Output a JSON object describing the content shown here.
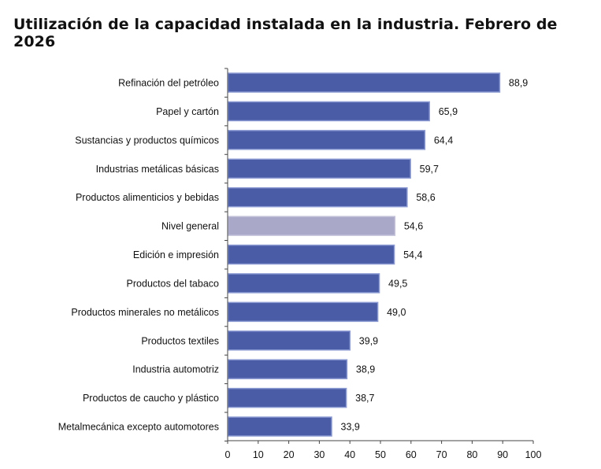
{
  "chart_data": {
    "type": "bar",
    "orientation": "horizontal",
    "title": "Utilización de la capacidad instalada en la industria. Febrero de 2026",
    "categories": [
      "Refinación del petróleo",
      "Papel y cartón",
      "Sustancias y productos químicos",
      "Industrias metálicas básicas",
      "Productos alimenticios y bebidas",
      "Nivel general",
      "Edición e impresión",
      "Productos del tabaco",
      "Productos minerales no metálicos",
      "Productos textiles",
      "Industria automotriz",
      "Productos de caucho y plástico",
      "Metalmecánica excepto automotores"
    ],
    "values": [
      88.9,
      65.9,
      64.4,
      59.7,
      58.6,
      54.6,
      54.4,
      49.5,
      49.0,
      39.9,
      38.9,
      38.7,
      33.9
    ],
    "value_labels": [
      "88,9",
      "65,9",
      "64,4",
      "59,7",
      "58,6",
      "54,6",
      "54,4",
      "49,5",
      "49,0",
      "39,9",
      "38,9",
      "38,7",
      "33,9"
    ],
    "highlight": "Nivel general",
    "xlim": [
      0,
      100
    ],
    "xticks": [
      "0",
      "10",
      "20",
      "30",
      "40",
      "50",
      "60",
      "70",
      "80",
      "90",
      "100"
    ],
    "grid": false,
    "colors": {
      "bar": "#4a5ca6",
      "bar_border": "#8b9ad2",
      "highlight": "#a9a8c8"
    }
  }
}
